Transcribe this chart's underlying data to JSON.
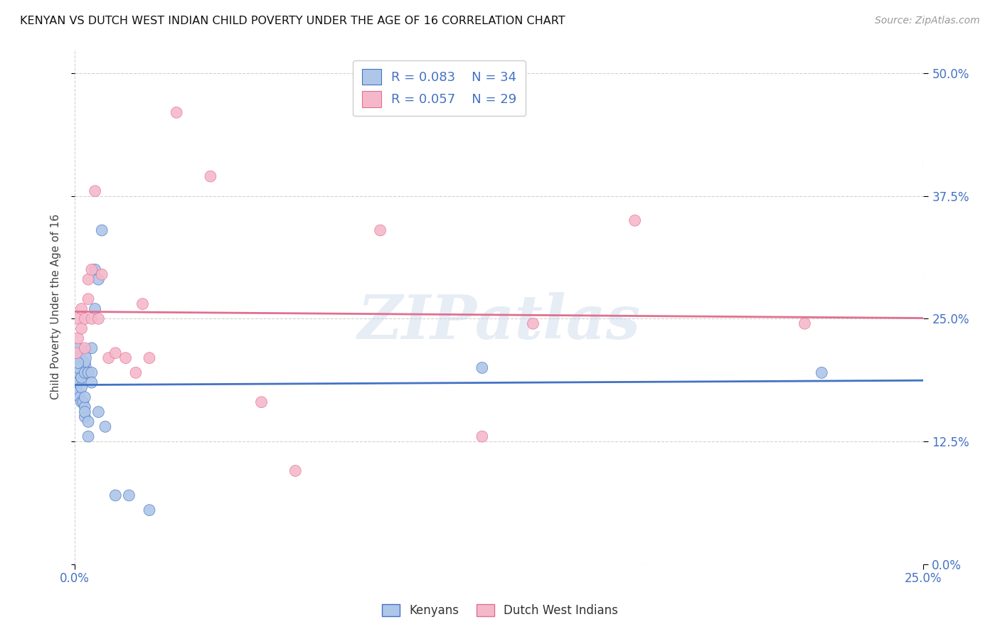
{
  "title": "KENYAN VS DUTCH WEST INDIAN CHILD POVERTY UNDER THE AGE OF 16 CORRELATION CHART",
  "source": "Source: ZipAtlas.com",
  "ylabel": "Child Poverty Under the Age of 16",
  "xmin": 0.0,
  "xmax": 0.25,
  "ymin": 0.0,
  "ymax": 0.525,
  "kenyan_R": "0.083",
  "kenyan_N": "34",
  "dutch_R": "0.057",
  "dutch_N": "29",
  "kenyan_color": "#aec6e8",
  "dutch_color": "#f5b8cb",
  "kenyan_line_color": "#4472c4",
  "dutch_line_color": "#e07090",
  "legend_text_color": "#4472c4",
  "watermark": "ZIPatlas",
  "kenyan_x": [
    0.0005,
    0.0005,
    0.001,
    0.001,
    0.001,
    0.001,
    0.001,
    0.0015,
    0.002,
    0.002,
    0.002,
    0.0025,
    0.003,
    0.003,
    0.003,
    0.003,
    0.003,
    0.004,
    0.004,
    0.004,
    0.005,
    0.005,
    0.005,
    0.006,
    0.006,
    0.007,
    0.007,
    0.008,
    0.009,
    0.012,
    0.016,
    0.022,
    0.12,
    0.22
  ],
  "kenyan_y": [
    0.2,
    0.21,
    0.185,
    0.195,
    0.2,
    0.205,
    0.175,
    0.17,
    0.18,
    0.19,
    0.165,
    0.165,
    0.15,
    0.16,
    0.17,
    0.155,
    0.195,
    0.13,
    0.145,
    0.195,
    0.195,
    0.185,
    0.22,
    0.26,
    0.3,
    0.155,
    0.29,
    0.34,
    0.14,
    0.07,
    0.07,
    0.055,
    0.2,
    0.195
  ],
  "dutch_x": [
    0.0005,
    0.001,
    0.001,
    0.002,
    0.002,
    0.003,
    0.003,
    0.004,
    0.004,
    0.005,
    0.005,
    0.006,
    0.007,
    0.008,
    0.01,
    0.012,
    0.015,
    0.018,
    0.02,
    0.022,
    0.03,
    0.04,
    0.055,
    0.065,
    0.09,
    0.12,
    0.135,
    0.165,
    0.215
  ],
  "dutch_y": [
    0.215,
    0.23,
    0.25,
    0.24,
    0.26,
    0.22,
    0.25,
    0.27,
    0.29,
    0.3,
    0.25,
    0.38,
    0.25,
    0.295,
    0.21,
    0.215,
    0.21,
    0.195,
    0.265,
    0.21,
    0.46,
    0.395,
    0.165,
    0.095,
    0.34,
    0.13,
    0.245,
    0.35,
    0.245
  ],
  "background_color": "#ffffff",
  "grid_color": "#cccccc"
}
